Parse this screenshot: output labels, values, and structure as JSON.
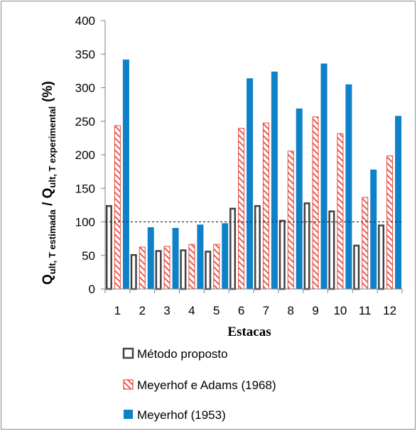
{
  "chart_data": {
    "type": "bar",
    "categories": [
      "1",
      "2",
      "3",
      "4",
      "5",
      "6",
      "7",
      "8",
      "9",
      "10",
      "11",
      "12"
    ],
    "series": [
      {
        "name": "Método proposto",
        "values": [
          125,
          52,
          58,
          59,
          57,
          121,
          125,
          103,
          129,
          117,
          66,
          96
        ],
        "color": "#404040",
        "style": "hollow"
      },
      {
        "name": "Meyerhof e Adams (1968)",
        "values": [
          244,
          63,
          64,
          67,
          67,
          240,
          248,
          206,
          257,
          232,
          137,
          199
        ],
        "color": "#e8483a",
        "style": "hatched"
      },
      {
        "name": "Meyerhof (1953)",
        "values": [
          342,
          92,
          91,
          96,
          98,
          314,
          324,
          269,
          336,
          305,
          178,
          258
        ],
        "color": "#0f81c8",
        "style": "solid"
      }
    ],
    "xlabel": "Estacas",
    "ylabel": {
      "Q1": "Q",
      "sub1": "ult, T estimada",
      "slash": " / Q",
      "sub2": "ult, T  experimental",
      "unit": "(%)"
    },
    "ylim": [
      0,
      400
    ],
    "yticks": [
      0,
      50,
      100,
      150,
      200,
      250,
      300,
      350,
      400
    ],
    "reference_line": 100,
    "grid": false,
    "legend_position": "bottom"
  }
}
